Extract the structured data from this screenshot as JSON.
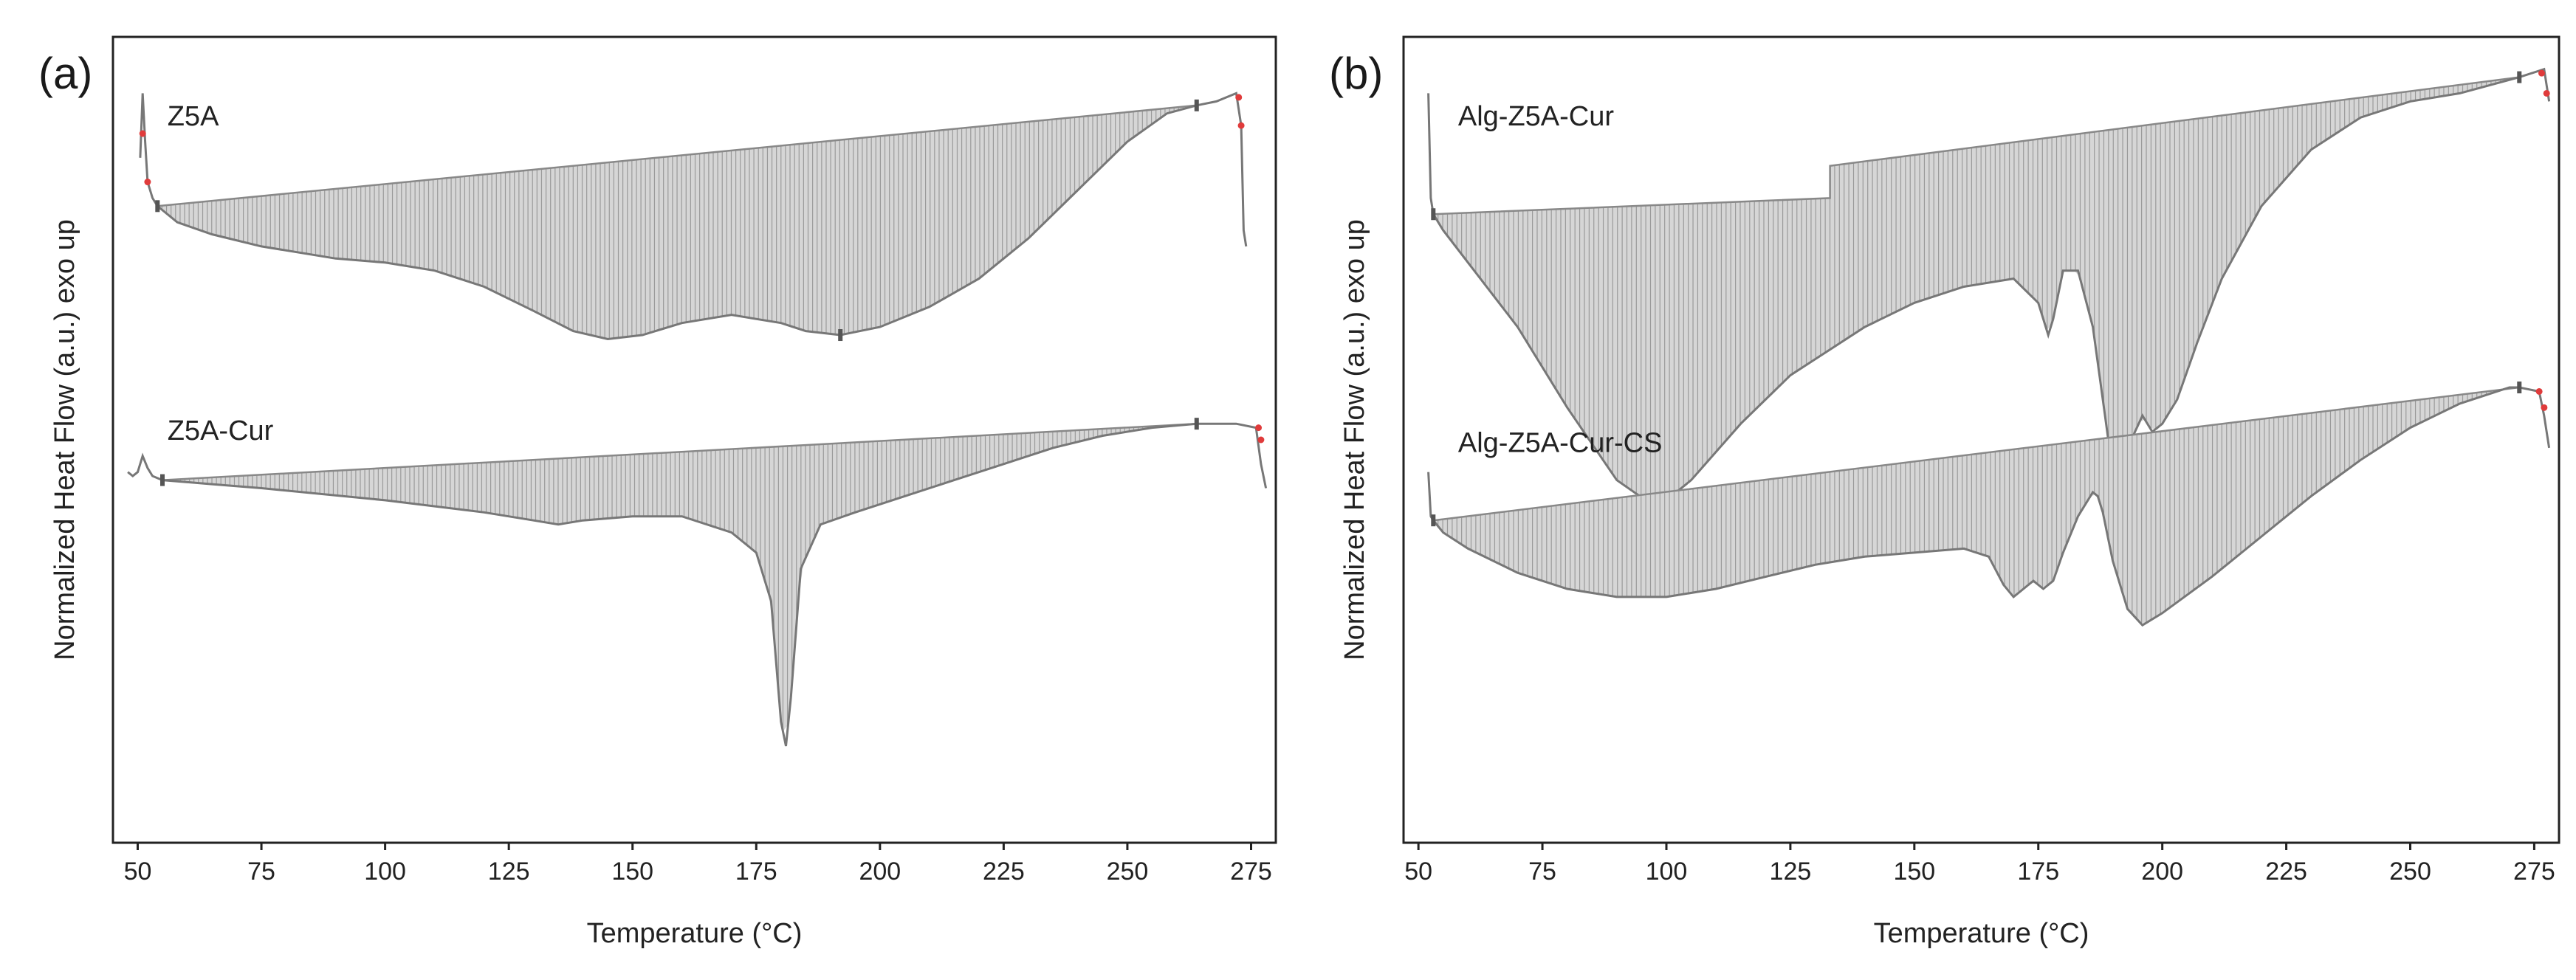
{
  "chart_data": [
    {
      "type": "line",
      "panel_label": "(a)",
      "xlabel": "Temperature (°C)",
      "ylabel": "Normalized Heat Flow (a.u.) exo up",
      "xlim": [
        45,
        280
      ],
      "ylim": [
        0,
        100
      ],
      "xticks": [
        50,
        75,
        100,
        125,
        150,
        175,
        200,
        225,
        250,
        275
      ],
      "grid": false,
      "series": [
        {
          "name": "Z5A",
          "label_at": [
            56,
            89
          ],
          "x": [
            50.5,
            51,
            51.5,
            52,
            53,
            54,
            58,
            65,
            75,
            90,
            100,
            110,
            120,
            130,
            138,
            145,
            152,
            160,
            170,
            180,
            185,
            192,
            200,
            210,
            220,
            230,
            240,
            250,
            258,
            264,
            268,
            272,
            273,
            273.5,
            274
          ],
          "y": [
            85,
            93,
            87,
            82,
            80,
            79,
            77,
            75.5,
            74,
            72.5,
            72,
            71,
            69,
            66,
            63.5,
            62.5,
            63,
            64.5,
            65.5,
            64.5,
            63.5,
            63,
            64,
            66.5,
            70,
            75,
            81,
            87,
            90.5,
            91.5,
            92,
            93,
            89,
            76,
            74
          ],
          "baseline": [
            [
              54,
              79
            ],
            [
              264,
              91.5
            ]
          ],
          "markers": [
            [
              54,
              79
            ],
            [
              192,
              63
            ],
            [
              264,
              91.5
            ]
          ],
          "red_markers": [
            [
              51,
              88
            ],
            [
              52,
              82
            ],
            [
              272.5,
              92.5
            ],
            [
              273,
              89
            ]
          ]
        },
        {
          "name": "Z5A-Cur",
          "label_at": [
            56,
            50
          ],
          "x": [
            48,
            49,
            50,
            51,
            52,
            53,
            55,
            65,
            75,
            100,
            120,
            130,
            135,
            140,
            150,
            160,
            170,
            175,
            178,
            180,
            181,
            182,
            184,
            188,
            195,
            205,
            215,
            225,
            235,
            245,
            255,
            264,
            268,
            272,
            276,
            277,
            278
          ],
          "y": [
            46,
            45.5,
            46,
            48,
            46.5,
            45.5,
            45,
            44.5,
            44,
            42.5,
            41,
            40,
            39.5,
            40,
            40.5,
            40.5,
            38.5,
            36,
            30,
            15,
            12,
            18,
            34,
            39.5,
            41,
            43,
            45,
            47,
            49,
            50.5,
            51.5,
            52,
            52,
            52,
            51.5,
            47,
            44
          ],
          "baseline": [
            [
              55,
              45
            ],
            [
              264,
              52
            ]
          ],
          "markers": [
            [
              55,
              45
            ],
            [
              264,
              52
            ]
          ],
          "red_markers": [
            [
              276.5,
              51.5
            ],
            [
              277,
              50
            ]
          ]
        }
      ]
    },
    {
      "type": "line",
      "panel_label": "(b)",
      "xlabel": "Temperature (°C)",
      "ylabel": "Normalized Heat Flow (a.u.) exo up",
      "xlim": [
        47,
        280
      ],
      "ylim": [
        0,
        100
      ],
      "xticks": [
        50,
        75,
        100,
        125,
        150,
        175,
        200,
        225,
        250,
        275
      ],
      "grid": false,
      "series": [
        {
          "name": "Alg-Z5A-Cur",
          "label_at": [
            58,
            89
          ],
          "x": [
            52,
            52.5,
            53,
            55,
            60,
            70,
            80,
            90,
            97,
            100,
            105,
            115,
            125,
            130,
            140,
            150,
            160,
            170,
            175,
            177,
            178,
            180,
            183,
            186,
            188,
            190,
            191,
            193,
            196,
            198,
            200,
            203,
            207,
            212,
            220,
            230,
            240,
            250,
            260,
            272,
            277,
            278
          ],
          "y": [
            93,
            80,
            78,
            76,
            72,
            64,
            54,
            45,
            42,
            42.5,
            45,
            52,
            58,
            60,
            64,
            67,
            69,
            70,
            67,
            63,
            65,
            71,
            71,
            64,
            55,
            46,
            44,
            49,
            53,
            51,
            52,
            55,
            62,
            70,
            79,
            86,
            90,
            92,
            93,
            95,
            96,
            92
          ],
          "baseline": [
            [
              53,
              78
            ],
            [
              133,
              80
            ],
            [
              133,
              84
            ],
            [
              272,
              95
            ]
          ],
          "markers": [
            [
              53,
              78
            ],
            [
              272,
              95
            ]
          ],
          "red_markers": [
            [
              276.5,
              95.5
            ],
            [
              277.5,
              93
            ]
          ]
        },
        {
          "name": "Alg-Z5A-Cur-CS",
          "label_at": [
            58,
            48.5
          ],
          "x": [
            52,
            52.5,
            53,
            55,
            60,
            70,
            80,
            90,
            100,
            110,
            120,
            130,
            140,
            150,
            160,
            165,
            168,
            170,
            172,
            174,
            176,
            178,
            180,
            183,
            186,
            187,
            188,
            190,
            193,
            196,
            200,
            210,
            220,
            230,
            240,
            250,
            260,
            270,
            272,
            276,
            277,
            278
          ],
          "y": [
            46,
            40.5,
            40,
            38.5,
            36.5,
            33.5,
            31.5,
            30.5,
            30.5,
            31.5,
            33,
            34.5,
            35.5,
            36,
            36.5,
            35.5,
            32,
            30.5,
            31.5,
            32.5,
            31.5,
            32.5,
            36,
            40.5,
            43.5,
            43,
            41,
            35,
            29,
            27,
            28.5,
            33,
            38,
            43,
            47.5,
            51.5,
            54.5,
            56.5,
            56.5,
            56,
            53,
            49
          ],
          "baseline": [
            [
              53,
              40
            ],
            [
              272,
              56.5
            ]
          ],
          "markers": [
            [
              53,
              40
            ],
            [
              272,
              56.5
            ]
          ],
          "red_markers": [
            [
              276,
              56
            ],
            [
              277,
              54
            ]
          ]
        }
      ]
    }
  ]
}
